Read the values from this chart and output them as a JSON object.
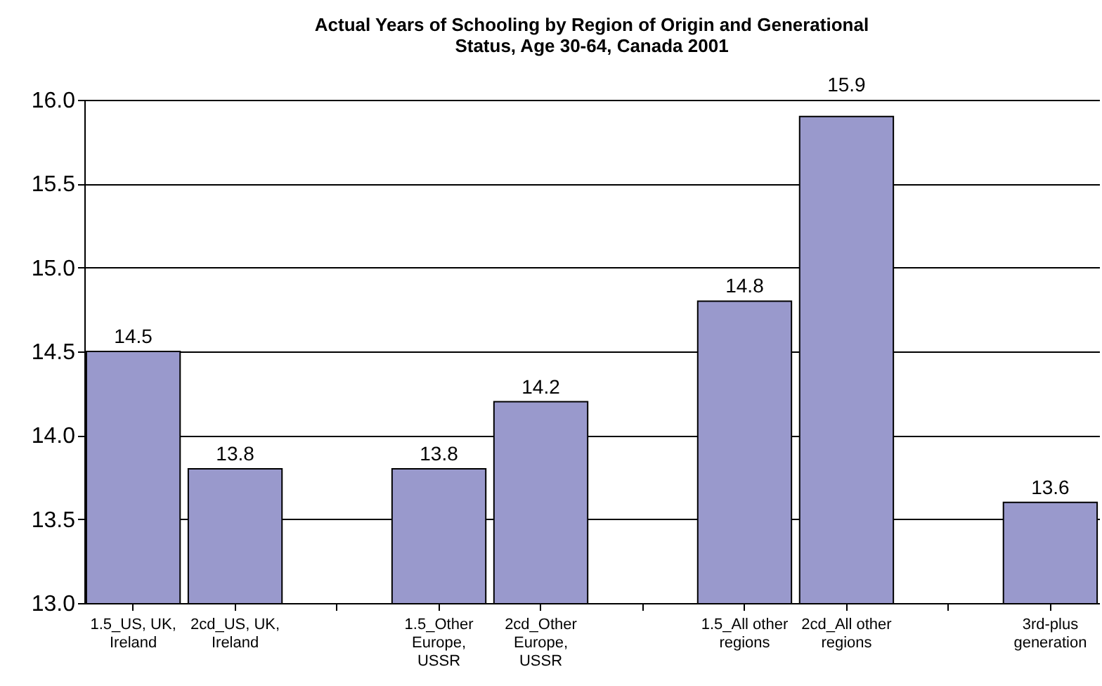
{
  "chart_data": {
    "type": "bar",
    "title": "Actual Years of Schooling by Region of Origin and Generational Status, Age 30-64, Canada 2001",
    "categories": [
      "1.5_US, UK, Ireland",
      "2cd_US, UK, Ireland",
      null,
      "1.5_Other Europe, USSR",
      "2cd_Other Europe, USSR",
      null,
      "1.5_All other regions",
      "2cd_All other regions",
      null,
      "3rd-plus generation"
    ],
    "values": [
      14.5,
      13.8,
      null,
      13.8,
      14.2,
      null,
      14.8,
      15.9,
      null,
      13.6
    ],
    "color": "#9999cc",
    "ylim": [
      13,
      16
    ],
    "yticks": [
      {
        "value": 13,
        "label": "13.0"
      },
      {
        "value": 13.5,
        "label": "13.5"
      },
      {
        "value": 14,
        "label": "14.0"
      },
      {
        "value": 14.5,
        "label": "14.5"
      },
      {
        "value": 15,
        "label": "15.0"
      },
      {
        "value": 15.5,
        "label": "15.5"
      },
      {
        "value": 16,
        "label": "16.0"
      }
    ],
    "grid": "y",
    "data_labels": true
  }
}
